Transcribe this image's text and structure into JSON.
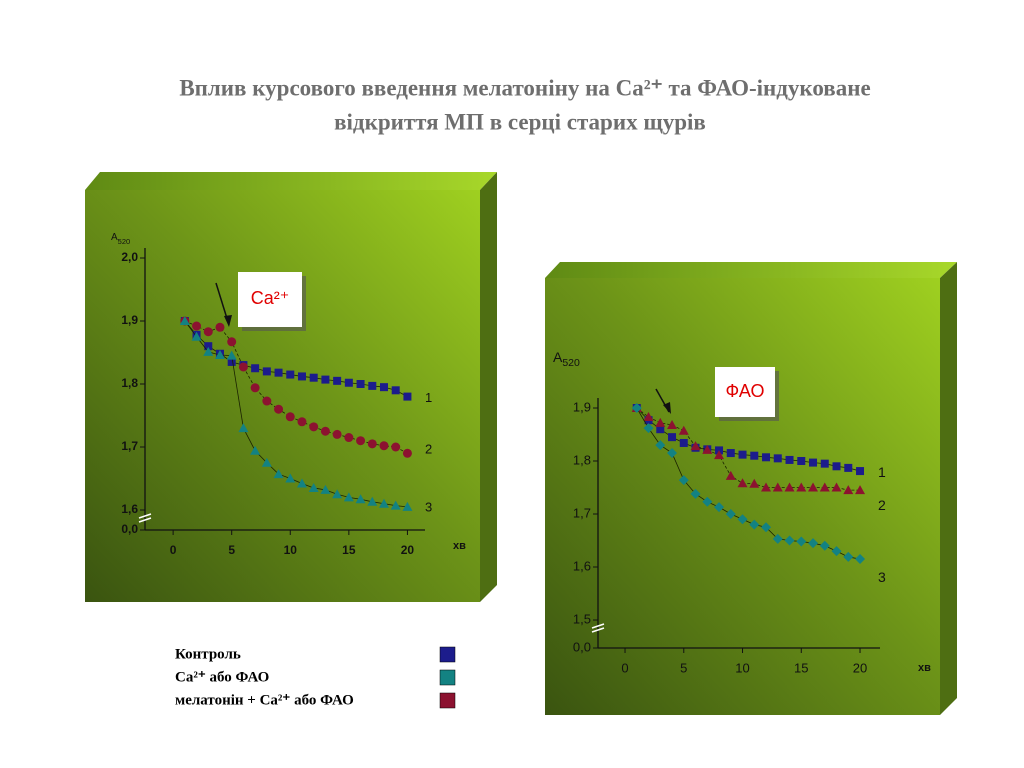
{
  "title_lines": [
    "Вплив курсового введення  мелатоніну на Ca²⁺ та ФАО-індуковане",
    "відкриття МП в серці старих щурів"
  ],
  "legend": [
    {
      "label": "Контроль",
      "color": "#1c1c8c"
    },
    {
      "label": "Ca²⁺ або ФАО",
      "color": "#138282"
    },
    {
      "label": "мелатонін + Ca²⁺ або ФАО",
      "color": "#8c1230"
    }
  ],
  "chart_data": [
    {
      "type": "scatter",
      "annotation": "Ca²⁺",
      "y_label": "A",
      "y_label_sub": "520",
      "x_label": "хв",
      "xlim": [
        -2.4,
        21.5
      ],
      "xticks": [
        0,
        5,
        10,
        15,
        20
      ],
      "ylim": [
        1.6,
        2.0
      ],
      "yticks": [
        {
          "value": 1.6,
          "label": "1,6"
        },
        {
          "value": 1.7,
          "label": "1,7"
        },
        {
          "value": 1.8,
          "label": "1,8"
        },
        {
          "value": 1.9,
          "label": "1,9"
        },
        {
          "value": 2.0,
          "label": "2,0"
        }
      ],
      "ybreak": {
        "value": 0,
        "label": "0,0"
      },
      "x": [
        1,
        2,
        3,
        4,
        5,
        6,
        7,
        8,
        9,
        10,
        11,
        12,
        13,
        14,
        15,
        16,
        17,
        18,
        19,
        20
      ],
      "series": [
        {
          "name": "1",
          "color": "#1c1c8c",
          "marker": "square",
          "values": [
            1.9,
            1.878,
            1.86,
            1.848,
            1.835,
            1.83,
            1.825,
            1.82,
            1.818,
            1.815,
            1.812,
            1.81,
            1.807,
            1.805,
            1.802,
            1.8,
            1.797,
            1.795,
            1.79,
            1.78
          ]
        },
        {
          "name": "2",
          "color": "#8c1230",
          "marker": "circle",
          "values": [
            1.9,
            1.892,
            1.883,
            1.89,
            1.867,
            1.827,
            1.794,
            1.773,
            1.76,
            1.748,
            1.74,
            1.732,
            1.725,
            1.72,
            1.715,
            1.71,
            1.705,
            1.702,
            1.7,
            1.69
          ]
        },
        {
          "name": "3",
          "color": "#138282",
          "marker": "triangle",
          "values": [
            1.9,
            1.875,
            1.851,
            1.846,
            1.845,
            1.73,
            1.694,
            1.675,
            1.657,
            1.65,
            1.642,
            1.635,
            1.632,
            1.625,
            1.62,
            1.617,
            1.613,
            1.61,
            1.607,
            1.605
          ]
        }
      ]
    },
    {
      "type": "scatter",
      "annotation": "ФАО",
      "y_label": "A",
      "y_label_sub": "520",
      "x_label": "хв",
      "xlim": [
        -2.3,
        21.7
      ],
      "xticks": [
        0,
        5,
        10,
        15,
        20
      ],
      "ylim": [
        1.5,
        1.9
      ],
      "yticks": [
        {
          "value": 1.5,
          "label": "1,5"
        },
        {
          "value": 1.6,
          "label": "1,6"
        },
        {
          "value": 1.7,
          "label": "1,7"
        },
        {
          "value": 1.8,
          "label": "1,8"
        },
        {
          "value": 1.9,
          "label": "1,9"
        }
      ],
      "ybreak": {
        "value": 0,
        "label": "0,0"
      },
      "x": [
        1,
        2,
        3,
        4,
        5,
        6,
        7,
        8,
        9,
        10,
        11,
        12,
        13,
        14,
        15,
        16,
        17,
        18,
        19,
        20
      ],
      "series": [
        {
          "name": "1",
          "color": "#1c1c8c",
          "marker": "square",
          "values": [
            1.9,
            1.877,
            1.86,
            1.845,
            1.834,
            1.825,
            1.822,
            1.82,
            1.815,
            1.812,
            1.81,
            1.807,
            1.805,
            1.802,
            1.8,
            1.797,
            1.795,
            1.79,
            1.787,
            1.781
          ]
        },
        {
          "name": "2",
          "color": "#8c1230",
          "marker": "triangle",
          "values": [
            1.9,
            1.883,
            1.872,
            1.868,
            1.857,
            1.828,
            1.821,
            1.811,
            1.772,
            1.758,
            1.757,
            1.75,
            1.75,
            1.75,
            1.75,
            1.75,
            1.75,
            1.75,
            1.745,
            1.745
          ]
        },
        {
          "name": "3",
          "color": "#138282",
          "marker": "diamond",
          "values": [
            1.9,
            1.862,
            1.83,
            1.815,
            1.764,
            1.738,
            1.723,
            1.713,
            1.7,
            1.69,
            1.68,
            1.675,
            1.653,
            1.65,
            1.648,
            1.645,
            1.64,
            1.63,
            1.619,
            1.615
          ]
        }
      ]
    }
  ]
}
